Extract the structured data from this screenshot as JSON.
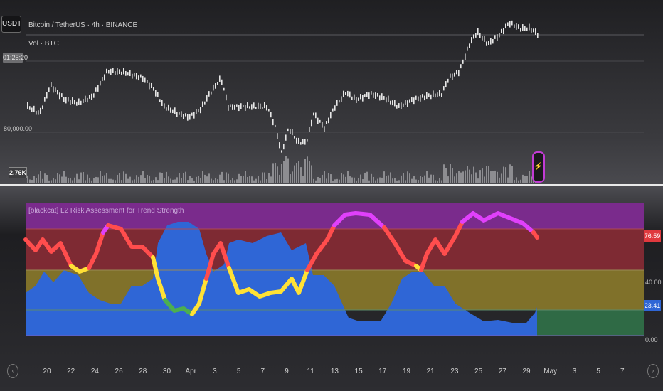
{
  "header": {
    "symbol_badge": "USDT",
    "instrument_line": "Bitcoin / TetherUS · 4h · BINANCE",
    "volume_legend": "Vol · BTC",
    "countdown": "01:25:20",
    "price_level_label": "80,000.00",
    "volume_value": "2.76K"
  },
  "indicator": {
    "title": "[blackcat] L2 Risk Assessment for Trend Strength",
    "current_value": "76.59",
    "mid_level": "40.00",
    "secondary_value": "23.41",
    "base_level": "0.00",
    "colors": {
      "extreme_zone": "#7a2b8c",
      "high_zone": "#7e2a33",
      "mid_zone": "#80712a",
      "low_zone": "#2f6a45",
      "strength_area": "#2f66d6",
      "line_bull": "#ff4d4d",
      "line_peak": "#e040fb",
      "line_weak": "#ffe135",
      "line_bottom": "#4caf50"
    }
  },
  "time_axis": {
    "ticks": [
      "20",
      "22",
      "24",
      "26",
      "28",
      "30",
      "Apr",
      "3",
      "5",
      "7",
      "9",
      "11",
      "13",
      "15",
      "17",
      "19",
      "21",
      "23",
      "25",
      "27",
      "29",
      "May",
      "3",
      "5",
      "7"
    ],
    "left_nav_icon": "left-arrow-icon",
    "right_nav_icon": "right-arrow-icon"
  },
  "icons": {
    "flash": "lightning-icon"
  }
}
